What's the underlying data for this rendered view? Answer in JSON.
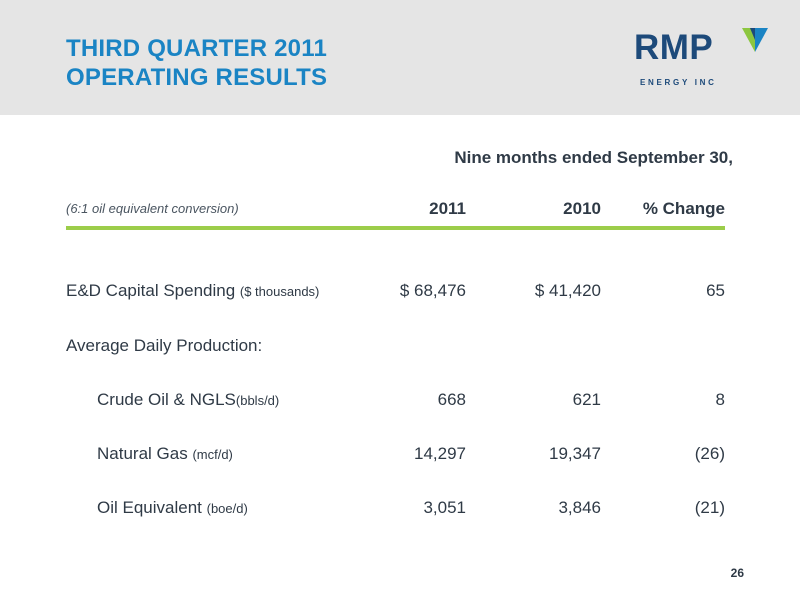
{
  "header": {
    "title_line1": "THIRD QUARTER 2011",
    "title_line2": "OPERATING RESULTS",
    "title_color": "#1a84c4",
    "background": "#e5e5e5"
  },
  "logo": {
    "mark": "RMP",
    "subtext": "ENERGY INC",
    "mark_icon": "chevron-v-icon",
    "colors": [
      "#1d4a7a",
      "#8cc63f",
      "#1a84c4"
    ]
  },
  "table": {
    "period_header": "Nine months ended September 30,",
    "conversion_note": "(6:1 oil equivalent conversion)",
    "columns": [
      "2011",
      "2010",
      "% Change"
    ],
    "rule_color": "#9ccd4a",
    "rows": [
      {
        "label": "E&D Capital Spending ",
        "unit": "($ thousands)",
        "v2011": "$ 68,476",
        "v2010": "$ 41,420",
        "change": "65"
      },
      {
        "label": "Average Daily Production:",
        "unit": "",
        "v2011": "",
        "v2010": "",
        "change": ""
      },
      {
        "label": "Crude Oil & NGLS",
        "unit": "(bbls/d)",
        "v2011": "668",
        "v2010": "621",
        "change": "8"
      },
      {
        "label": "Natural Gas ",
        "unit": "(mcf/d)",
        "v2011": "14,297",
        "v2010": "19,347",
        "change": "(26)"
      },
      {
        "label": "Oil Equivalent ",
        "unit": "(boe/d)",
        "v2011": "3,051",
        "v2010": "3,846",
        "change": "(21)"
      }
    ]
  },
  "footer": {
    "page_number": "26"
  }
}
